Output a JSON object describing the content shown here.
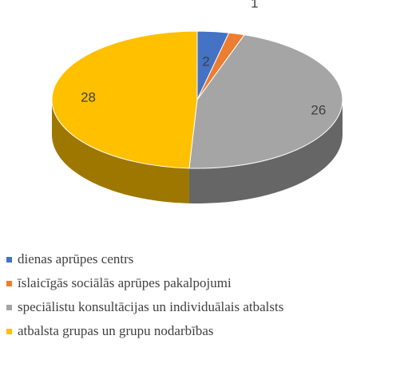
{
  "chart_data": {
    "type": "pie",
    "categories": [
      "dienas aprūpes centrs",
      "īslaicīgās sociālās aprūpes pakalpojumi",
      "speciālistu konsultācijas un individuālais atbalsts",
      "atbalsta grupas un grupu nodarbības"
    ],
    "values": [
      2,
      1,
      26,
      28
    ],
    "colors": [
      "#4472c4",
      "#ed7d31",
      "#a5a5a5",
      "#ffc000"
    ],
    "legend": "bottom"
  }
}
